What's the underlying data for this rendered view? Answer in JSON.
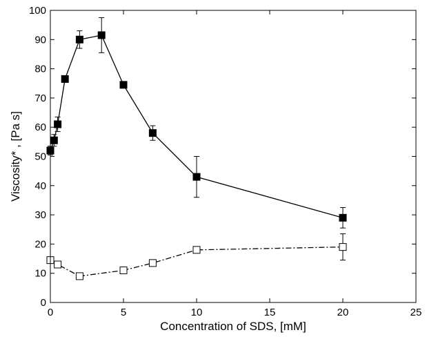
{
  "chart_data": {
    "type": "line",
    "xlabel": "Concentration of SDS, [mM]",
    "ylabel": "Viscosity* , [Pa s]",
    "xlim": [
      0,
      25
    ],
    "ylim": [
      0,
      100
    ],
    "xticks": [
      "0",
      "5",
      "10",
      "15",
      "20",
      "25"
    ],
    "yticks": [
      "0",
      "10",
      "20",
      "30",
      "40",
      "50",
      "60",
      "70",
      "80",
      "90",
      "100"
    ],
    "grid": false,
    "series": [
      {
        "marker": "filled-square",
        "line_style": "solid",
        "color": "#000000",
        "x": [
          0,
          0.25,
          0.5,
          1,
          2,
          3.5,
          5,
          7,
          10,
          20
        ],
        "y": [
          52,
          55.5,
          61,
          76.5,
          90,
          91.5,
          74.5,
          58,
          43,
          29
        ],
        "err": [
          1.5,
          2,
          2.5,
          0,
          3,
          6,
          0,
          2.5,
          7,
          3.5
        ]
      },
      {
        "marker": "open-square",
        "line_style": "dash-dot",
        "color": "#000000",
        "x": [
          0,
          0.5,
          2,
          5,
          7,
          10,
          20
        ],
        "y": [
          14.5,
          13,
          9,
          11,
          13.5,
          18,
          19
        ],
        "err": [
          0,
          0,
          0,
          0,
          0,
          0,
          4.5
        ]
      }
    ]
  }
}
